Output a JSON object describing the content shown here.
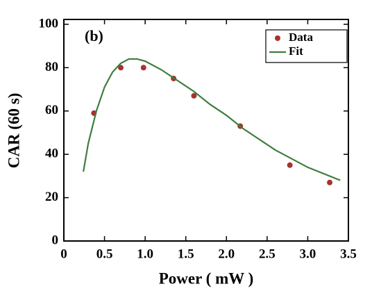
{
  "chart_data": {
    "type": "scatter",
    "annotation": "(b)",
    "x_label": "Power ( mW )",
    "y_label": "CAR  (60 s)",
    "xlim": [
      0,
      3.5
    ],
    "ylim": [
      0,
      100
    ],
    "xticks": [
      0,
      0.5,
      {
        "value": 1,
        "label": "1.0"
      },
      1.5,
      {
        "value": 2,
        "label": "2.0"
      },
      2.5,
      {
        "value": 3,
        "label": "3.0"
      },
      3.5
    ],
    "yticks": [
      0,
      20,
      40,
      60,
      80,
      100
    ],
    "legend": "upper right",
    "series": [
      {
        "name": "Data",
        "type": "scatter",
        "color": "#a8322d",
        "x": [
          0.37,
          0.7,
          0.98,
          1.35,
          1.6,
          2.17,
          2.78,
          3.27
        ],
        "values": [
          59,
          80,
          80,
          75,
          67,
          53,
          35,
          27
        ]
      },
      {
        "name": "Fit",
        "type": "line",
        "color": "#3d7d3d",
        "x": [
          0.24,
          0.3,
          0.4,
          0.5,
          0.6,
          0.7,
          0.8,
          0.9,
          1.0,
          1.2,
          1.4,
          1.6,
          1.8,
          2.0,
          2.2,
          2.4,
          2.6,
          2.8,
          3.0,
          3.2,
          3.4
        ],
        "values": [
          32,
          45,
          60,
          71,
          78,
          82,
          84,
          84,
          83,
          79,
          74,
          69,
          63,
          58,
          52,
          47,
          42,
          38,
          34,
          31,
          28
        ]
      }
    ]
  }
}
